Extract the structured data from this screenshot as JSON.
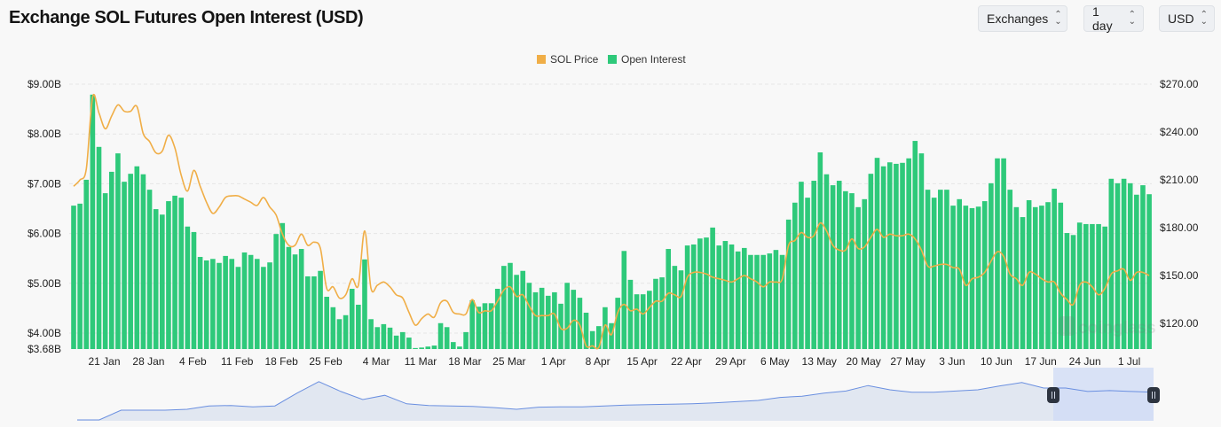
{
  "title": "Exchange SOL Futures Open Interest (USD)",
  "controls": [
    {
      "label": "Exchanges",
      "icon": "chevron-up-down-icon"
    },
    {
      "label": "1 day",
      "icon": "chevron-up-down-icon"
    },
    {
      "label": "USD",
      "icon": "chevron-up-down-icon"
    }
  ],
  "watermark": "coinglass",
  "colors": {
    "price": "#f0ae47",
    "open_interest": "#2ec97a",
    "navigator_line": "#6a8fe0",
    "navigator_fill": "#e1e7f1",
    "navigator_selection": "#cfdbf5"
  },
  "chart_data": {
    "type": "bar+line",
    "start_date": "2024-01-17",
    "interval": "1 day",
    "legend": {
      "placement": "top-center",
      "entries": [
        "SOL Price",
        "Open Interest"
      ]
    },
    "grid": true,
    "y_left": {
      "unit": "USD (billions)",
      "range": [
        3.68,
        9.0
      ],
      "ticks": [
        "$9.00B",
        "$8.00B",
        "$7.00B",
        "$6.00B",
        "$5.00B",
        "$4.00B",
        "$3.68B"
      ],
      "tick_values": [
        9,
        8,
        7,
        6,
        5,
        4,
        3.68
      ]
    },
    "y_right": {
      "unit": "USD",
      "range": [
        104,
        270
      ],
      "ticks": [
        "$270.00",
        "$240.00",
        "$210.00",
        "$180.00",
        "$150.00",
        "$120.00"
      ],
      "tick_values": [
        270,
        240,
        210,
        180,
        150,
        120
      ]
    },
    "x_ticks": [
      {
        "label": "21 Jan",
        "index": 4
      },
      {
        "label": "28 Jan",
        "index": 11
      },
      {
        "label": "4 Feb",
        "index": 18
      },
      {
        "label": "11 Feb",
        "index": 25
      },
      {
        "label": "18 Feb",
        "index": 32
      },
      {
        "label": "25 Feb",
        "index": 39
      },
      {
        "label": "4 Mar",
        "index": 47
      },
      {
        "label": "11 Mar",
        "index": 54
      },
      {
        "label": "18 Mar",
        "index": 61
      },
      {
        "label": "25 Mar",
        "index": 68
      },
      {
        "label": "1 Apr",
        "index": 75
      },
      {
        "label": "8 Apr",
        "index": 82
      },
      {
        "label": "15 Apr",
        "index": 89
      },
      {
        "label": "22 Apr",
        "index": 96
      },
      {
        "label": "29 Apr",
        "index": 103
      },
      {
        "label": "6 May",
        "index": 110
      },
      {
        "label": "13 May",
        "index": 117
      },
      {
        "label": "20 May",
        "index": 124
      },
      {
        "label": "27 May",
        "index": 131
      },
      {
        "label": "3 Jun",
        "index": 138
      },
      {
        "label": "10 Jun",
        "index": 145
      },
      {
        "label": "17 Jun",
        "index": 152
      },
      {
        "label": "24 Jun",
        "index": 159
      },
      {
        "label": "1 Jul",
        "index": 166
      }
    ],
    "series": [
      {
        "name": "Open Interest",
        "type": "bar",
        "axis": "left",
        "values": [
          6.56,
          6.6,
          7.08,
          8.79,
          7.74,
          6.81,
          7.24,
          7.61,
          7.04,
          7.2,
          7.35,
          7.19,
          6.88,
          6.49,
          6.38,
          6.65,
          6.76,
          6.72,
          6.14,
          6.03,
          5.53,
          5.46,
          5.49,
          5.41,
          5.55,
          5.49,
          5.33,
          5.62,
          5.57,
          5.49,
          5.33,
          5.42,
          5.99,
          6.21,
          5.73,
          5.58,
          5.69,
          5.14,
          5.14,
          5.25,
          4.73,
          4.52,
          4.28,
          4.36,
          4.89,
          4.57,
          5.48,
          4.28,
          4.12,
          4.18,
          4.11,
          3.95,
          4.02,
          3.91,
          3.7,
          3.71,
          3.73,
          3.75,
          4.2,
          4.12,
          3.82,
          3.73,
          4.02,
          4.66,
          4.53,
          4.6,
          4.6,
          4.89,
          5.35,
          5.41,
          5.17,
          5.25,
          5.01,
          4.82,
          4.91,
          4.75,
          4.82,
          4.59,
          5.01,
          4.87,
          4.71,
          4.41,
          4.04,
          4.14,
          4.52,
          4.2,
          4.71,
          5.65,
          5.07,
          4.78,
          4.78,
          4.85,
          5.09,
          5.12,
          5.69,
          5.35,
          5.26,
          5.76,
          5.78,
          5.9,
          5.92,
          6.12,
          5.76,
          5.85,
          5.78,
          5.64,
          5.71,
          5.57,
          5.57,
          5.57,
          5.6,
          5.67,
          5.57,
          6.28,
          6.62,
          7.04,
          6.72,
          7.06,
          7.63,
          7.19,
          6.97,
          7.06,
          6.85,
          6.81,
          6.53,
          6.69,
          7.2,
          7.52,
          7.35,
          7.43,
          7.4,
          7.42,
          7.51,
          7.86,
          7.61,
          6.88,
          6.72,
          6.88,
          6.88,
          6.56,
          6.69,
          6.56,
          6.51,
          6.54,
          6.65,
          7.01,
          7.51,
          7.51,
          6.88,
          6.53,
          6.33,
          6.67,
          6.53,
          6.56,
          6.63,
          6.9,
          6.62,
          6.01,
          5.97,
          6.22,
          6.19,
          6.19,
          6.19,
          6.14,
          7.1,
          7.01,
          7.1,
          7.01,
          6.78,
          6.97,
          6.79
        ]
      },
      {
        "name": "SOL Price",
        "type": "line",
        "axis": "right",
        "values": [
          206,
          210,
          217,
          262,
          252,
          242,
          250,
          257,
          253,
          253,
          256,
          239,
          234,
          227,
          228,
          238,
          230,
          213,
          203,
          216,
          206,
          196,
          189,
          193,
          199,
          200,
          200,
          198,
          196,
          194,
          199,
          193,
          188,
          176,
          169,
          169,
          176,
          169,
          171,
          167,
          142,
          143,
          136,
          138,
          148,
          144,
          178,
          142,
          144,
          146,
          143,
          138,
          136,
          127,
          119,
          123,
          126,
          124,
          133,
          134,
          127,
          126,
          126,
          135,
          127,
          128,
          128,
          134,
          141,
          143,
          137,
          138,
          131,
          125,
          125,
          125,
          126,
          117,
          117,
          122,
          119,
          106,
          106,
          105,
          119,
          113,
          127,
          132,
          128,
          129,
          126,
          130,
          134,
          134,
          139,
          138,
          137,
          149,
          152,
          152,
          151,
          149,
          148,
          147,
          146,
          148,
          150,
          148,
          146,
          143,
          146,
          146,
          148,
          169,
          172,
          177,
          174,
          175,
          183,
          178,
          169,
          166,
          166,
          173,
          167,
          168,
          174,
          179,
          174,
          176,
          175,
          175,
          176,
          173,
          166,
          156,
          156,
          157,
          157,
          155,
          154,
          144,
          148,
          149,
          152,
          159,
          165,
          162,
          151,
          148,
          144,
          152,
          151,
          148,
          146,
          146,
          139,
          135,
          132,
          144,
          146,
          143,
          138,
          142,
          151,
          153,
          154,
          147,
          152,
          152,
          150
        ]
      }
    ],
    "navigator": {
      "selected_range": [
        "2024-01-17",
        "2024-07-05"
      ],
      "relative_levels": [
        0.02,
        0.02,
        0.25,
        0.25,
        0.25,
        0.27,
        0.35,
        0.36,
        0.33,
        0.35,
        0.65,
        0.92,
        0.69,
        0.5,
        0.6,
        0.4,
        0.36,
        0.35,
        0.34,
        0.31,
        0.27,
        0.32,
        0.33,
        0.33,
        0.35,
        0.37,
        0.38,
        0.39,
        0.4,
        0.42,
        0.45,
        0.48,
        0.55,
        0.58,
        0.65,
        0.7,
        0.83,
        0.73,
        0.67,
        0.67,
        0.7,
        0.73,
        0.82,
        0.9,
        0.77,
        0.77,
        0.69,
        0.71,
        0.69,
        0.67
      ]
    }
  }
}
